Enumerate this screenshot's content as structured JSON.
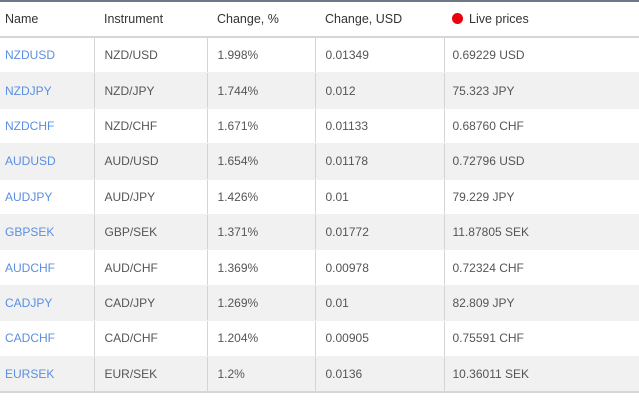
{
  "columns": [
    "Name",
    "Instrument",
    "Change, %",
    "Change, USD",
    "Live prices"
  ],
  "live_indicator_color": "#e8000b",
  "rows": [
    {
      "name": "NZDUSD",
      "instrument": "NZD/USD",
      "change_pct": "1.998%",
      "change_usd": "0.01349",
      "price": "0.69229 USD"
    },
    {
      "name": "NZDJPY",
      "instrument": "NZD/JPY",
      "change_pct": "1.744%",
      "change_usd": "0.012",
      "price": "75.323 JPY"
    },
    {
      "name": "NZDCHF",
      "instrument": "NZD/CHF",
      "change_pct": "1.671%",
      "change_usd": "0.01133",
      "price": "0.68760 CHF"
    },
    {
      "name": "AUDUSD",
      "instrument": "AUD/USD",
      "change_pct": "1.654%",
      "change_usd": "0.01178",
      "price": "0.72796 USD"
    },
    {
      "name": "AUDJPY",
      "instrument": "AUD/JPY",
      "change_pct": "1.426%",
      "change_usd": "0.01",
      "price": "79.229 JPY"
    },
    {
      "name": "GBPSEK",
      "instrument": "GBP/SEK",
      "change_pct": "1.371%",
      "change_usd": "0.01772",
      "price": "11.87805 SEK"
    },
    {
      "name": "AUDCHF",
      "instrument": "AUD/CHF",
      "change_pct": "1.369%",
      "change_usd": "0.00978",
      "price": "0.72324 CHF"
    },
    {
      "name": "CADJPY",
      "instrument": "CAD/JPY",
      "change_pct": "1.269%",
      "change_usd": "0.01",
      "price": "82.809 JPY"
    },
    {
      "name": "CADCHF",
      "instrument": "CAD/CHF",
      "change_pct": "1.204%",
      "change_usd": "0.00905",
      "price": "0.75591 CHF"
    },
    {
      "name": "EURSEK",
      "instrument": "EUR/SEK",
      "change_pct": "1.2%",
      "change_usd": "0.0136",
      "price": "10.36011 SEK"
    }
  ]
}
